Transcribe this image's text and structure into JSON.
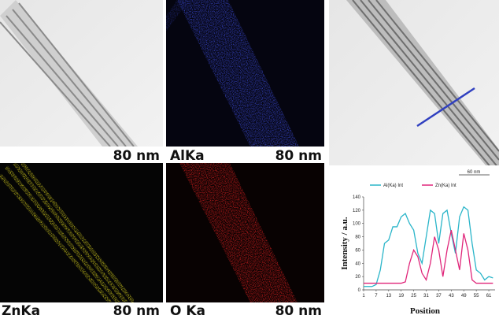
{
  "panels": [
    {
      "scale": "80 nm"
    },
    {
      "element": "AlKa",
      "scale": "80 nm"
    },
    {
      "element": "ZnKa",
      "scale": "80 nm"
    },
    {
      "element": "O Ka",
      "scale": "80 nm"
    }
  ],
  "tem_scale": "60 nm",
  "chart_data": {
    "type": "line",
    "x_label": "Position",
    "y_label": "Intensity / a.u.",
    "x": [
      1,
      3,
      5,
      7,
      9,
      11,
      13,
      15,
      17,
      19,
      21,
      23,
      25,
      27,
      29,
      31,
      33,
      35,
      37,
      39,
      41,
      43,
      45,
      47,
      49,
      51,
      53,
      55,
      57,
      59,
      61,
      63
    ],
    "series": [
      {
        "name": "Al(Ka) Int",
        "color": "#2ab5c9",
        "values": [
          5,
          5,
          5,
          8,
          30,
          70,
          75,
          95,
          95,
          110,
          115,
          100,
          90,
          55,
          40,
          80,
          120,
          115,
          70,
          115,
          120,
          85,
          55,
          110,
          125,
          120,
          70,
          30,
          25,
          15,
          20,
          18
        ]
      },
      {
        "name": "Zn(Ka) Int",
        "color": "#e0267a",
        "values": [
          10,
          10,
          10,
          10,
          10,
          10,
          10,
          10,
          10,
          10,
          12,
          40,
          60,
          50,
          25,
          15,
          40,
          80,
          60,
          20,
          60,
          90,
          60,
          30,
          85,
          60,
          15,
          10,
          10,
          10,
          10,
          10
        ]
      }
    ],
    "xlim": [
      1,
      64
    ],
    "xticks": [
      1,
      7,
      13,
      19,
      25,
      31,
      37,
      43,
      49,
      55,
      61
    ],
    "ylim": [
      0,
      140
    ],
    "yticks": [
      0,
      20,
      40,
      60,
      80,
      100,
      120,
      140
    ]
  }
}
